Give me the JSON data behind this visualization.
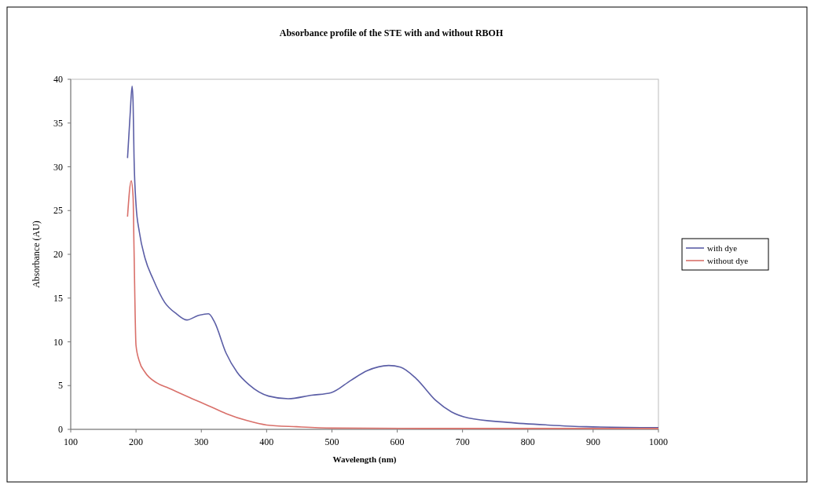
{
  "chart_data": {
    "type": "line",
    "title": "Absorbance profile of the STE with and without RBOH",
    "xlabel": "Wavelength (nm)",
    "ylabel": "Absorbance (AU)",
    "xlim": [
      100,
      1000
    ],
    "xticks": [
      100,
      200,
      300,
      400,
      500,
      600,
      700,
      800,
      900,
      1000
    ],
    "ylim": [
      0,
      40
    ],
    "yticks": [
      0,
      5,
      10,
      15,
      20,
      25,
      30,
      35,
      40
    ],
    "grid": false,
    "legend": "right",
    "marker": "none",
    "line_style": "solid",
    "series": [
      {
        "name": "with dye",
        "color": "#5b5ea6",
        "x": [
          187,
          191,
          194,
          195.5,
          197,
          200,
          205,
          214,
          226,
          244,
          262,
          278,
          295,
          311,
          320,
          338,
          355,
          373,
          403,
          433,
          469,
          499,
          529,
          554,
          587,
          605,
          629,
          659,
          683,
          709,
          769,
          830,
          890,
          1000
        ],
        "values": [
          31,
          36,
          39.2,
          37.4,
          31,
          25.7,
          22.6,
          19.5,
          17.2,
          14.5,
          13.2,
          12.5,
          13,
          13.2,
          12.3,
          8.7,
          6.5,
          5.1,
          3.8,
          3.5,
          3.9,
          4.2,
          5.6,
          6.7,
          7.3,
          7.1,
          5.8,
          3.3,
          2,
          1.3,
          0.8,
          0.5,
          0.3,
          0.2
        ]
      },
      {
        "name": "without dye",
        "color": "#d9706a",
        "x": [
          187,
          192.7,
          195.5,
          197,
          200,
          205,
          214,
          232,
          250,
          286,
          311,
          338,
          370,
          400,
          446,
          500,
          700,
          1000
        ],
        "values": [
          24.3,
          28.4,
          26.6,
          20.4,
          9.6,
          7.8,
          6.5,
          5.3,
          4.7,
          3.5,
          2.7,
          1.8,
          1,
          0.5,
          0.3,
          0.15,
          0.1,
          0.1
        ]
      }
    ]
  }
}
